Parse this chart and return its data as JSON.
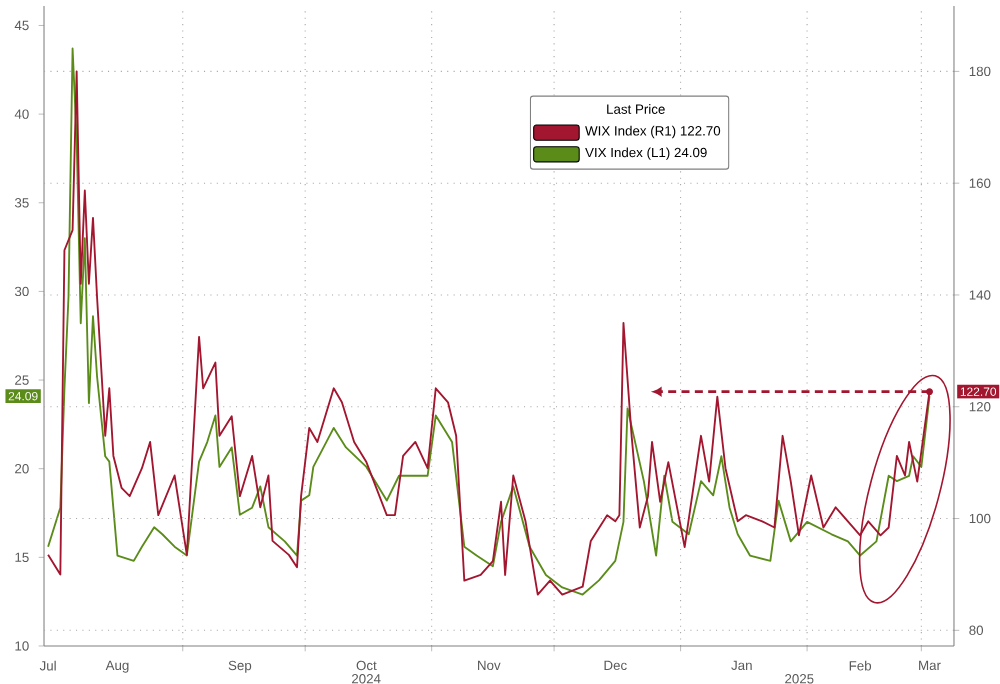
{
  "chart_data": {
    "type": "line",
    "legend_title": "Last Price",
    "legend": "top",
    "grid": true,
    "xlim": [
      "2024-07-29",
      "2025-03-09"
    ],
    "xticks": [
      {
        "value": "2024-07-30",
        "label": "Jul"
      },
      {
        "value": "2024-08-16",
        "label": "Aug"
      },
      {
        "value": "2024-09-15",
        "label": "Sep"
      },
      {
        "value": "2024-10-16",
        "label": "Oct"
      },
      {
        "value": "2024-11-15",
        "label": "Nov"
      },
      {
        "value": "2024-12-16",
        "label": "Dec"
      },
      {
        "value": "2025-01-16",
        "label": "Jan"
      },
      {
        "value": "2025-02-14",
        "label": "Feb"
      },
      {
        "value": "2025-03-03",
        "label": "Mar"
      },
      {
        "value": "2024-09-01",
        "label": null
      },
      {
        "value": "2024-10-01",
        "label": null
      },
      {
        "value": "2024-11-01",
        "label": null
      },
      {
        "value": "2024-12-01",
        "label": null
      },
      {
        "value": "2025-01-01",
        "label": null
      },
      {
        "value": "2025-02-01",
        "label": null
      },
      {
        "value": "2025-03-01",
        "label": null
      }
    ],
    "ylim": [
      10,
      46.1
    ],
    "yticks": [
      10,
      15,
      20,
      25,
      30,
      35,
      40,
      45
    ],
    "y2lim": [
      77.2,
      191.7
    ],
    "y2ticks": [
      80,
      100,
      120,
      140,
      160,
      180
    ],
    "series": [
      {
        "name": "WIX Index (R1) 122.70",
        "color": "#a3162f",
        "axis": "y2",
        "x": [
          "2024-07-30",
          "2024-08-02",
          "2024-08-03",
          "2024-08-05",
          "2024-08-06",
          "2024-08-07",
          "2024-08-08",
          "2024-08-09",
          "2024-08-10",
          "2024-08-11",
          "2024-08-13",
          "2024-08-14",
          "2024-08-15",
          "2024-08-17",
          "2024-08-19",
          "2024-08-22",
          "2024-08-24",
          "2024-08-26",
          "2024-08-30",
          "2024-09-02",
          "2024-09-05",
          "2024-09-06",
          "2024-09-09",
          "2024-09-10",
          "2024-09-13",
          "2024-09-15",
          "2024-09-18",
          "2024-09-20",
          "2024-09-22",
          "2024-09-23",
          "2024-09-27",
          "2024-09-29",
          "2024-09-30",
          "2024-10-02",
          "2024-10-04",
          "2024-10-08",
          "2024-10-10",
          "2024-10-13",
          "2024-10-16",
          "2024-10-21",
          "2024-10-23",
          "2024-10-25",
          "2024-10-28",
          "2024-10-31",
          "2024-11-02",
          "2024-11-05",
          "2024-11-07",
          "2024-11-09",
          "2024-11-13",
          "2024-11-16",
          "2024-11-18",
          "2024-11-19",
          "2024-11-21",
          "2024-11-24",
          "2024-11-27",
          "2024-11-30",
          "2024-12-03",
          "2024-12-08",
          "2024-12-10",
          "2024-12-14",
          "2024-12-16",
          "2024-12-17",
          "2024-12-18",
          "2024-12-20",
          "2024-12-22",
          "2024-12-24",
          "2024-12-25",
          "2024-12-27",
          "2024-12-29",
          "2025-01-02",
          "2025-01-06",
          "2025-01-08",
          "2025-01-10",
          "2025-01-12",
          "2025-01-15",
          "2025-01-17",
          "2025-01-21",
          "2025-01-24",
          "2025-01-26",
          "2025-01-28",
          "2025-01-30",
          "2025-02-02",
          "2025-02-05",
          "2025-02-08",
          "2025-02-11",
          "2025-02-14",
          "2025-02-16",
          "2025-02-19",
          "2025-02-21",
          "2025-02-23",
          "2025-02-25",
          "2025-02-26",
          "2025-02-28",
          "2025-03-03"
        ],
        "values": [
          93.5,
          90,
          148,
          151.6,
          180,
          142,
          158.7,
          142,
          153.8,
          139.6,
          114.8,
          123.3,
          111.2,
          105.5,
          104,
          109,
          113.7,
          100.6,
          107.7,
          93.5,
          132.5,
          123.3,
          127.9,
          114.8,
          118.3,
          104,
          111.2,
          102,
          107.7,
          96,
          93.5,
          91.3,
          104,
          116.2,
          113.7,
          123.3,
          120.8,
          113.7,
          110.1,
          100.6,
          100.6,
          111.2,
          113.7,
          109,
          123.3,
          120.8,
          114.8,
          88.9,
          89.9,
          92.4,
          103,
          89.9,
          107.7,
          99.5,
          86.4,
          88.9,
          86.4,
          87.8,
          96,
          100.6,
          99.5,
          100.6,
          135,
          114.8,
          98.4,
          104,
          113.7,
          103,
          110.1,
          94.9,
          114.8,
          106.6,
          121.8,
          109,
          99.5,
          100.6,
          99.5,
          98.4,
          114.8,
          106.6,
          97,
          107.7,
          98.4,
          102,
          99.5,
          97,
          99.5,
          97,
          98.4,
          111.2,
          107.7,
          113.7,
          106.6,
          122.7
        ]
      },
      {
        "name": "VIX Index (L1) 24.09",
        "color": "#5b8c1a",
        "x": [
          "2024-07-30",
          "2024-08-02",
          "2024-08-03",
          "2024-08-04",
          "2024-08-05",
          "2024-08-06",
          "2024-08-07",
          "2024-08-08",
          "2024-08-09",
          "2024-08-10",
          "2024-08-11",
          "2024-08-13",
          "2024-08-14",
          "2024-08-16",
          "2024-08-20",
          "2024-08-22",
          "2024-08-25",
          "2024-08-27",
          "2024-08-30",
          "2024-09-02",
          "2024-09-05",
          "2024-09-07",
          "2024-09-09",
          "2024-09-10",
          "2024-09-13",
          "2024-09-15",
          "2024-09-18",
          "2024-09-20",
          "2024-09-22",
          "2024-09-26",
          "2024-09-29",
          "2024-09-30",
          "2024-10-02",
          "2024-10-03",
          "2024-10-08",
          "2024-10-11",
          "2024-10-16",
          "2024-10-21",
          "2024-10-24",
          "2024-10-31",
          "2024-11-02",
          "2024-11-06",
          "2024-11-09",
          "2024-11-12",
          "2024-11-16",
          "2024-11-18",
          "2024-11-21",
          "2024-11-25",
          "2024-11-29",
          "2024-12-03",
          "2024-12-08",
          "2024-12-12",
          "2024-12-16",
          "2024-12-18",
          "2024-12-19",
          "2024-12-23",
          "2024-12-26",
          "2024-12-28",
          "2024-12-30",
          "2025-01-03",
          "2025-01-06",
          "2025-01-09",
          "2025-01-11",
          "2025-01-13",
          "2025-01-15",
          "2025-01-18",
          "2025-01-23",
          "2025-01-25",
          "2025-01-28",
          "2025-02-01",
          "2025-02-07",
          "2025-02-11",
          "2025-02-14",
          "2025-02-18",
          "2025-02-21",
          "2025-02-23",
          "2025-02-26",
          "2025-02-27",
          "2025-03-01",
          "2025-03-03"
        ],
        "values": [
          15.6,
          17.8,
          24.5,
          29.7,
          43.7,
          38.6,
          28.2,
          33,
          23.7,
          28.6,
          25.2,
          20.7,
          20.4,
          15.1,
          14.8,
          15.6,
          16.7,
          16.3,
          15.6,
          15.1,
          20.4,
          21.5,
          23,
          20.1,
          21.2,
          17.4,
          17.8,
          19,
          16.7,
          15.9,
          15.1,
          18.2,
          18.5,
          20.1,
          22.3,
          21.2,
          20.1,
          18.2,
          19.6,
          19.6,
          23,
          21.5,
          15.6,
          15.1,
          14.5,
          17,
          19,
          15.6,
          14,
          13.3,
          12.9,
          13.7,
          14.8,
          17,
          23.4,
          19.3,
          15.1,
          19.6,
          17,
          16.3,
          19.3,
          18.5,
          20.7,
          17.8,
          16.3,
          15.1,
          14.8,
          18.2,
          15.9,
          17,
          16.3,
          15.9,
          15.1,
          15.9,
          19.6,
          19.3,
          19.6,
          20.7,
          20.1,
          24.09
        ]
      }
    ],
    "annotations": [
      "24.09",
      "122.70",
      "2024",
      "2025"
    ]
  }
}
